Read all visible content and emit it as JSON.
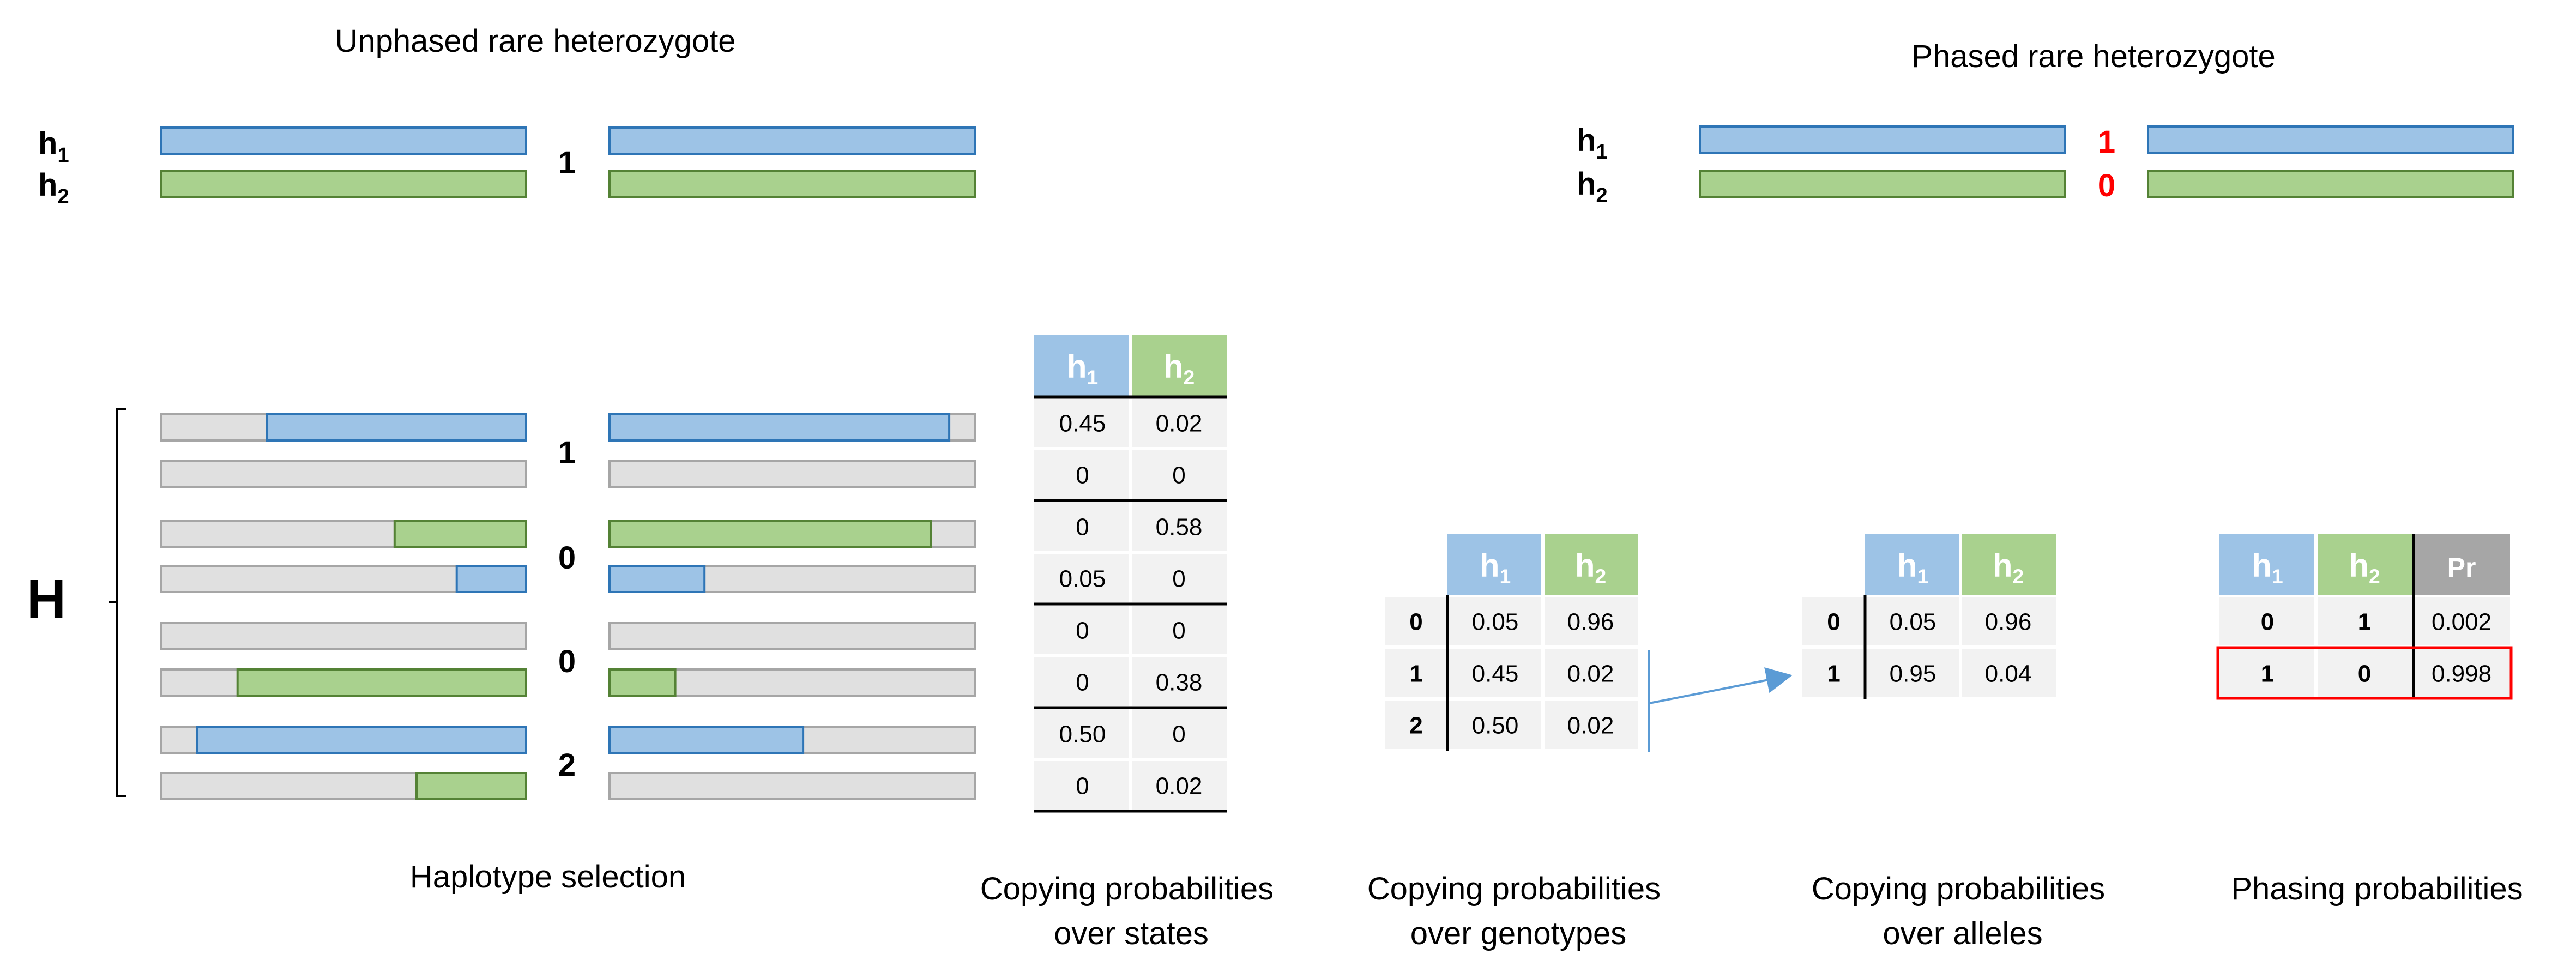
{
  "colors": {
    "blue_fill": "#9dc3e6",
    "blue_stroke": "#2e75b6",
    "green_fill": "#a9d18e",
    "green_stroke": "#548235",
    "grey_fill": "#e0e0e0",
    "grey_stroke": "#a6a6a6",
    "pr_header": "#a6a6a6",
    "cell_bg": "#f2f2f2",
    "red": "#ff0000",
    "arrow": "#5b9bd5"
  },
  "unphased": {
    "title": "Unphased rare heterozygote",
    "h1": "h",
    "h1_sub": "1",
    "h2": "h",
    "h2_sub": "2",
    "genotype": "1"
  },
  "phased": {
    "title": "Phased rare heterozygote",
    "h1": "h",
    "h1_sub": "1",
    "h2": "h",
    "h2_sub": "2",
    "allele_h1": "1",
    "allele_h2": "0"
  },
  "haplotypes": {
    "label": "H",
    "genotypes": [
      "1",
      "0",
      "0",
      "2"
    ],
    "rows": [
      {
        "left": {
          "c": "blue",
          "s": 0.29,
          "e": 1.0
        },
        "right": {
          "c": "blue",
          "s": 0.0,
          "e": 0.93
        }
      },
      {
        "left": null,
        "right": null
      },
      {
        "left": {
          "c": "green",
          "s": 0.64,
          "e": 1.0
        },
        "right": {
          "c": "green",
          "s": 0.0,
          "e": 0.88
        }
      },
      {
        "left": {
          "c": "blue",
          "s": 0.81,
          "e": 1.0
        },
        "right": {
          "c": "blue",
          "s": 0.0,
          "e": 0.26
        }
      },
      {
        "left": null,
        "right": null
      },
      {
        "left": {
          "c": "green",
          "s": 0.21,
          "e": 1.0
        },
        "right": {
          "c": "green",
          "s": 0.0,
          "e": 0.18
        }
      },
      {
        "left": {
          "c": "blue",
          "s": 0.1,
          "e": 1.0
        },
        "right": {
          "c": "blue",
          "s": 0.0,
          "e": 0.53
        }
      },
      {
        "left": {
          "c": "green",
          "s": 0.7,
          "e": 1.0
        },
        "right": null
      }
    ]
  },
  "states_table": {
    "headers": [
      {
        "t": "h",
        "s": "1"
      },
      {
        "t": "h",
        "s": "2"
      }
    ],
    "rows": [
      [
        "0.45",
        "0.02"
      ],
      [
        "0",
        "0"
      ],
      [
        "0",
        "0.58"
      ],
      [
        "0.05",
        "0"
      ],
      [
        "0",
        "0"
      ],
      [
        "0",
        "0.38"
      ],
      [
        "0.50",
        "0"
      ],
      [
        "0",
        "0.02"
      ]
    ]
  },
  "genotypes_table": {
    "headers": [
      {
        "t": "h",
        "s": "1"
      },
      {
        "t": "h",
        "s": "2"
      }
    ],
    "row_labels": [
      "0",
      "1",
      "2"
    ],
    "rows": [
      [
        "0.05",
        "0.96"
      ],
      [
        "0.45",
        "0.02"
      ],
      [
        "0.50",
        "0.02"
      ]
    ]
  },
  "alleles_table": {
    "headers": [
      {
        "t": "h",
        "s": "1"
      },
      {
        "t": "h",
        "s": "2"
      }
    ],
    "row_labels": [
      "0",
      "1"
    ],
    "rows": [
      [
        "0.05",
        "0.96"
      ],
      [
        "0.95",
        "0.04"
      ]
    ]
  },
  "phasing_table": {
    "headers": [
      {
        "t": "h",
        "s": "1"
      },
      {
        "t": "h",
        "s": "2"
      },
      {
        "t": "Pr",
        "s": ""
      }
    ],
    "rows": [
      [
        "0",
        "1",
        "0.002"
      ],
      [
        "1",
        "0",
        "0.998"
      ]
    ],
    "highlight_row": 1
  },
  "captions": {
    "haplotype_selection": "Haplotype selection",
    "states": [
      "Copying probabilities",
      "over states"
    ],
    "genotypes": [
      "Copying probabilities",
      "over genotypes"
    ],
    "alleles": [
      "Copying probabilities",
      "over alleles"
    ],
    "phasing": "Phasing probabilities"
  }
}
